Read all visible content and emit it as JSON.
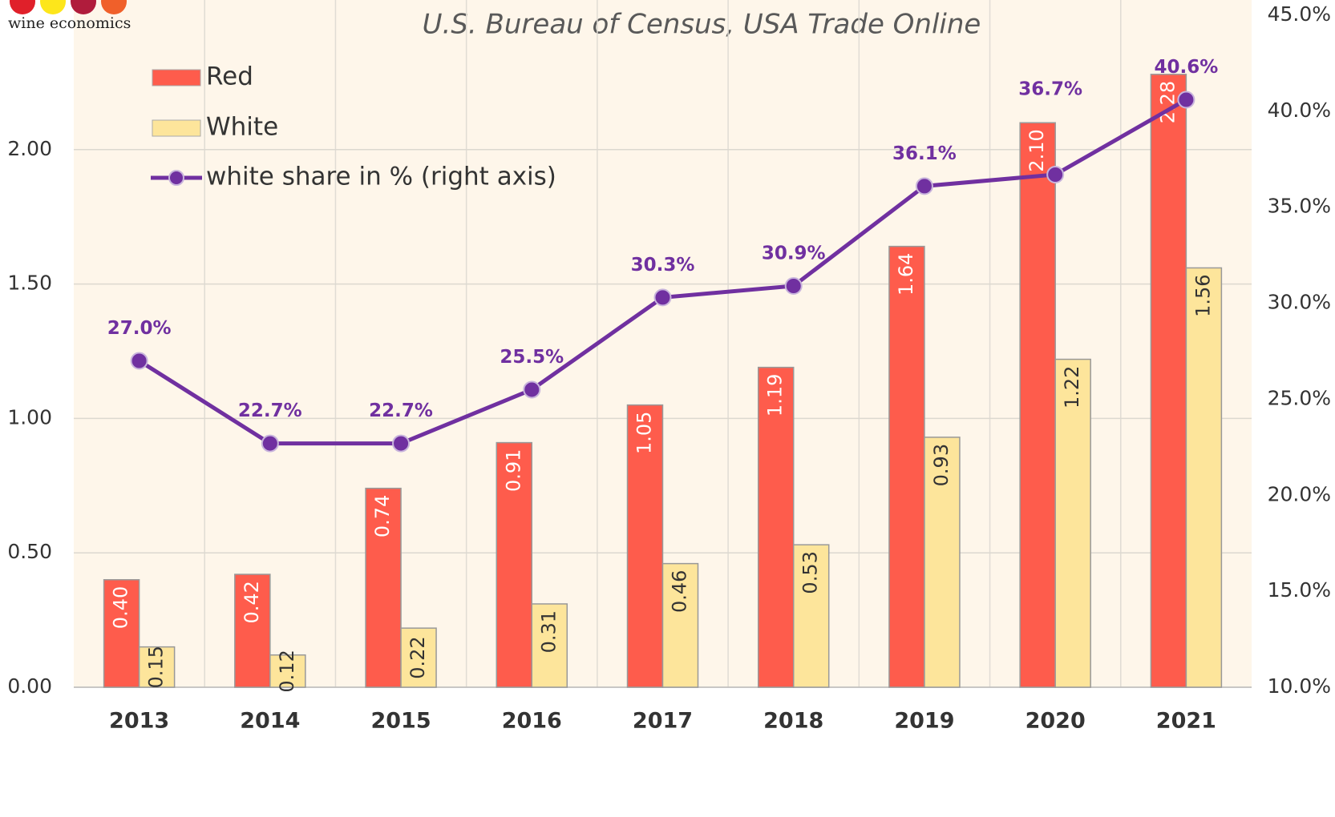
{
  "logo": {
    "text": "wine economics"
  },
  "chart_data": {
    "type": "bar",
    "subtitle": "U.S. Bureau of Census, USA Trade Online",
    "categories": [
      "2013",
      "2014",
      "2015",
      "2016",
      "2017",
      "2018",
      "2019",
      "2020",
      "2021"
    ],
    "series": [
      {
        "name": "Red",
        "color": "#fe5c4c",
        "values": [
          0.4,
          0.42,
          0.74,
          0.91,
          1.05,
          1.19,
          1.64,
          2.1,
          2.28
        ],
        "value_labels": [
          "0.40",
          "0.42",
          "0.74",
          "0.91",
          "1.05",
          "1.19",
          "1.64",
          "2.10",
          "2.28"
        ]
      },
      {
        "name": "White",
        "color": "#fde59b",
        "values": [
          0.15,
          0.12,
          0.22,
          0.31,
          0.46,
          0.53,
          0.93,
          1.22,
          1.56
        ],
        "value_labels": [
          "0.15",
          "0.12",
          "0.22",
          "0.31",
          "0.46",
          "0.53",
          "0.93",
          "1.22",
          "1.56"
        ]
      },
      {
        "name": "white share in % (right axis)",
        "type": "line",
        "axis": "y2",
        "color": "#7030a0",
        "values": [
          27.0,
          22.7,
          22.7,
          25.5,
          30.3,
          30.9,
          36.1,
          36.7,
          40.6
        ],
        "value_labels": [
          "27.0%",
          "22.7%",
          "22.7%",
          "25.5%",
          "30.3%",
          "30.9%",
          "36.1%",
          "36.7%",
          "40.6%"
        ]
      }
    ],
    "ylim": [
      0,
      2.5
    ],
    "yticks": [
      {
        "value": 0,
        "label": "0.00"
      },
      {
        "value": 0.5,
        "label": "0.50"
      },
      {
        "value": 1,
        "label": "1.00"
      },
      {
        "value": 1.5,
        "label": "1.50"
      },
      {
        "value": 2,
        "label": "2.00"
      }
    ],
    "y2lim": [
      10,
      45
    ],
    "y2ticks": [
      {
        "value": 10,
        "label": "10.0%"
      },
      {
        "value": 15,
        "label": "15.0%"
      },
      {
        "value": 20,
        "label": "20.0%"
      },
      {
        "value": 25,
        "label": "25.0%"
      },
      {
        "value": 30,
        "label": "30.0%"
      },
      {
        "value": 35,
        "label": "35.0%"
      },
      {
        "value": 40,
        "label": "40.0%"
      },
      {
        "value": 45,
        "label": "45.0%"
      }
    ],
    "grid": true,
    "legend": "upper left"
  }
}
